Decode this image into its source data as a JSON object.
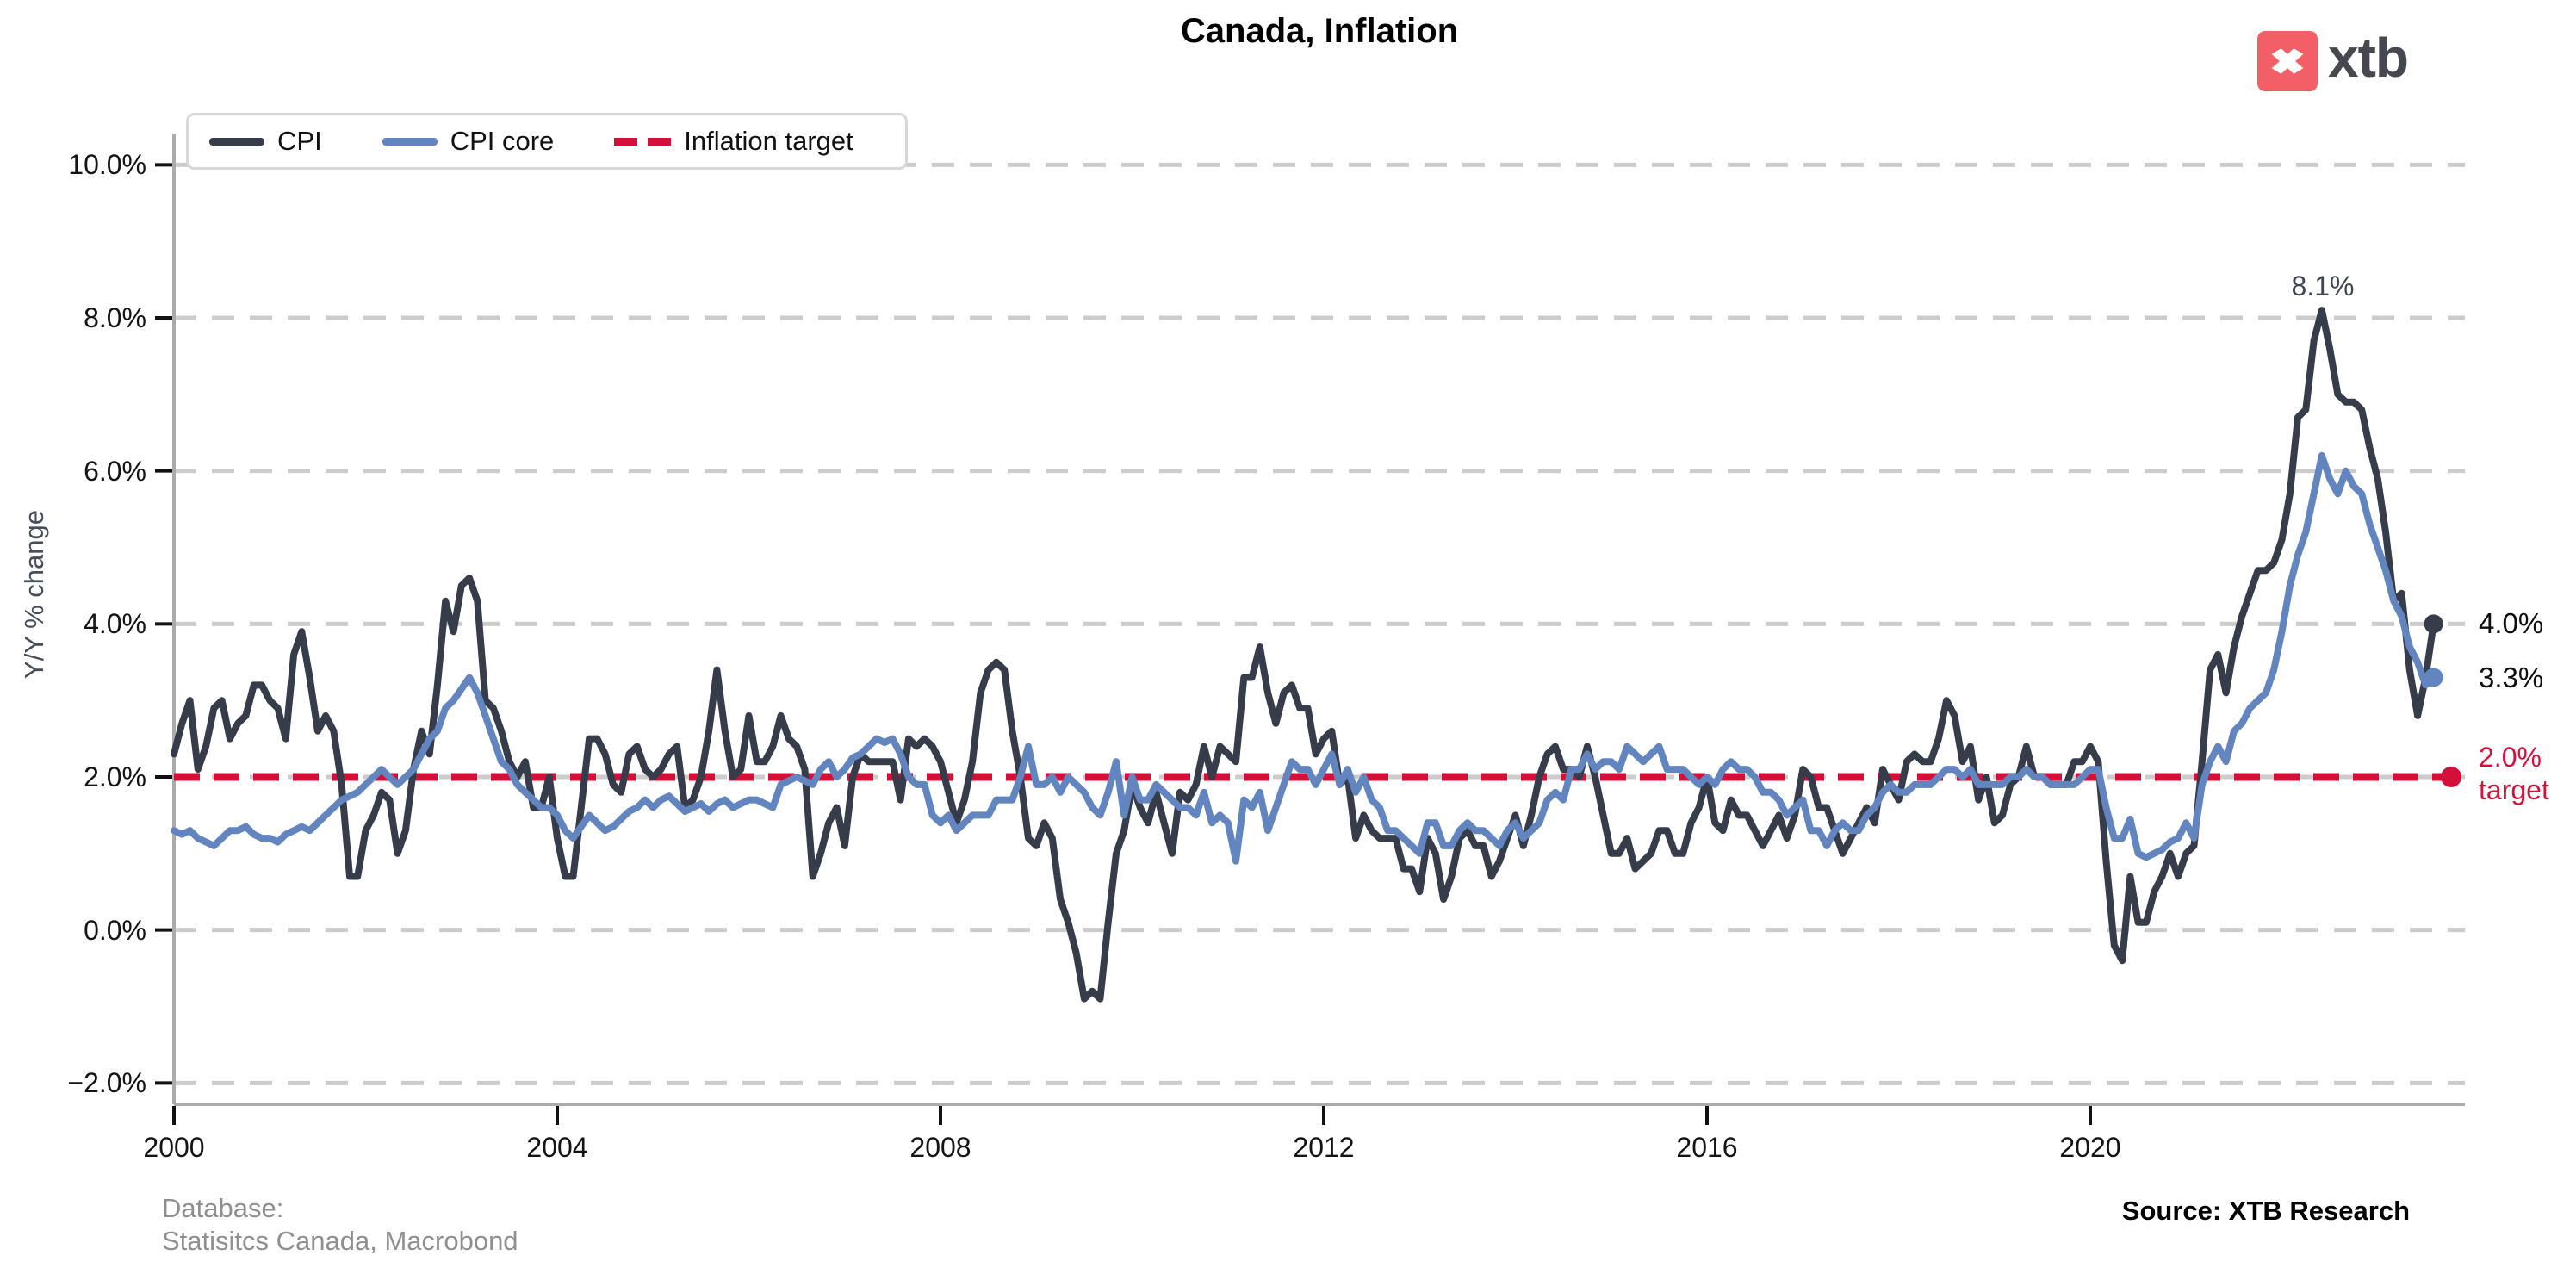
{
  "header": {
    "title": "Canada, Inflation"
  },
  "logo": {
    "text": "xtb",
    "square_color": "#f25f66",
    "text_color": "#45494f"
  },
  "legend": {
    "items": [
      {
        "label": "CPI"
      },
      {
        "label": "CPI core"
      },
      {
        "label": "Inflation target"
      }
    ]
  },
  "chart_data": {
    "type": "line",
    "title": "Canada, Inflation",
    "ylabel": "Y/Y % change",
    "x_start": 2000.0,
    "x_step_months": 1,
    "xlim": [
      2000,
      2023.75
    ],
    "ylim": [
      -2.3,
      10.5
    ],
    "grid": "horizontal-dashed",
    "legend_position": "top-left",
    "xticks": [
      2000,
      2004,
      2008,
      2012,
      2016,
      2020
    ],
    "yticks": [
      {
        "v": 10,
        "label": "10.0%"
      },
      {
        "v": 8,
        "label": "8.0%"
      },
      {
        "v": 6,
        "label": "6.0%"
      },
      {
        "v": 4,
        "label": "4.0%"
      },
      {
        "v": 2,
        "label": "2.0%"
      },
      {
        "v": 0,
        "label": "0.0%"
      },
      {
        "v": -2,
        "label": "−2.0%"
      }
    ],
    "target_line": {
      "label": "Inflation target",
      "value": 2.0,
      "color": "#d40f3a"
    },
    "annotations": {
      "peak": "8.1%",
      "cpi_end": "4.0%",
      "core_end": "3.3%",
      "target_line1": "2.0%",
      "target_line2": "target"
    },
    "series": [
      {
        "name": "CPI",
        "color": "#363c4a",
        "values": [
          2.3,
          2.7,
          3.0,
          2.1,
          2.4,
          2.9,
          3.0,
          2.5,
          2.7,
          2.8,
          3.2,
          3.2,
          3.0,
          2.9,
          2.5,
          3.6,
          3.9,
          3.3,
          2.6,
          2.8,
          2.6,
          1.9,
          0.7,
          0.7,
          1.3,
          1.5,
          1.8,
          1.7,
          1.0,
          1.3,
          2.1,
          2.6,
          2.3,
          3.2,
          4.3,
          3.9,
          4.5,
          4.6,
          4.3,
          3.0,
          2.9,
          2.6,
          2.2,
          2.0,
          2.2,
          1.6,
          1.6,
          2.0,
          1.2,
          0.7,
          0.7,
          1.6,
          2.5,
          2.5,
          2.3,
          1.9,
          1.8,
          2.3,
          2.4,
          2.1,
          2.0,
          2.1,
          2.3,
          2.4,
          1.6,
          1.7,
          2.0,
          2.6,
          3.4,
          2.6,
          2.0,
          2.1,
          2.8,
          2.2,
          2.2,
          2.4,
          2.8,
          2.5,
          2.4,
          2.1,
          0.7,
          1.0,
          1.4,
          1.6,
          1.1,
          2.0,
          2.3,
          2.2,
          2.2,
          2.2,
          2.2,
          1.7,
          2.5,
          2.4,
          2.5,
          2.4,
          2.2,
          1.8,
          1.4,
          1.7,
          2.2,
          3.1,
          3.4,
          3.5,
          3.4,
          2.6,
          2.0,
          1.2,
          1.1,
          1.4,
          1.2,
          0.4,
          0.1,
          -0.3,
          -0.9,
          -0.8,
          -0.9,
          0.1,
          1.0,
          1.3,
          1.9,
          1.6,
          1.4,
          1.8,
          1.4,
          1.0,
          1.8,
          1.7,
          1.9,
          2.4,
          2.0,
          2.4,
          2.3,
          2.2,
          3.3,
          3.3,
          3.7,
          3.1,
          2.7,
          3.1,
          3.2,
          2.9,
          2.9,
          2.3,
          2.5,
          2.6,
          1.9,
          2.0,
          1.2,
          1.5,
          1.3,
          1.2,
          1.2,
          1.2,
          0.8,
          0.8,
          0.5,
          1.2,
          1.0,
          0.4,
          0.7,
          1.2,
          1.3,
          1.1,
          1.1,
          0.7,
          0.9,
          1.2,
          1.5,
          1.1,
          1.5,
          2.0,
          2.3,
          2.4,
          2.1,
          2.1,
          2.0,
          2.4,
          2.0,
          1.5,
          1.0,
          1.0,
          1.2,
          0.8,
          0.9,
          1.0,
          1.3,
          1.3,
          1.0,
          1.0,
          1.4,
          1.6,
          2.0,
          1.4,
          1.3,
          1.7,
          1.5,
          1.5,
          1.3,
          1.1,
          1.3,
          1.5,
          1.2,
          1.5,
          2.1,
          2.0,
          1.6,
          1.6,
          1.3,
          1.0,
          1.2,
          1.4,
          1.6,
          1.4,
          2.1,
          1.9,
          1.7,
          2.2,
          2.3,
          2.2,
          2.2,
          2.5,
          3.0,
          2.8,
          2.2,
          2.4,
          1.7,
          2.0,
          1.4,
          1.5,
          1.9,
          2.0,
          2.4,
          2.0,
          2.0,
          1.9,
          1.9,
          1.9,
          2.2,
          2.2,
          2.4,
          2.2,
          0.9,
          -0.2,
          -0.4,
          0.7,
          0.1,
          0.1,
          0.5,
          0.7,
          1.0,
          0.7,
          1.0,
          1.1,
          2.2,
          3.4,
          3.6,
          3.1,
          3.7,
          4.1,
          4.4,
          4.7,
          4.7,
          4.8,
          5.1,
          5.7,
          6.7,
          6.8,
          7.7,
          8.1,
          7.6,
          7.0,
          6.9,
          6.9,
          6.8,
          6.3,
          5.9,
          5.2,
          4.3,
          4.4,
          3.4,
          2.8,
          3.3,
          4.0
        ]
      },
      {
        "name": "CPI core",
        "color": "#6285c0",
        "values": [
          1.3,
          1.25,
          1.3,
          1.2,
          1.15,
          1.1,
          1.2,
          1.3,
          1.3,
          1.35,
          1.25,
          1.2,
          1.2,
          1.15,
          1.25,
          1.3,
          1.35,
          1.3,
          1.4,
          1.5,
          1.6,
          1.7,
          1.75,
          1.8,
          1.9,
          2.0,
          2.1,
          2.0,
          1.9,
          2.0,
          2.1,
          2.3,
          2.5,
          2.6,
          2.9,
          3.0,
          3.15,
          3.3,
          3.1,
          2.8,
          2.5,
          2.2,
          2.1,
          1.9,
          1.8,
          1.7,
          1.6,
          1.6,
          1.5,
          1.3,
          1.2,
          1.35,
          1.5,
          1.4,
          1.3,
          1.35,
          1.45,
          1.55,
          1.6,
          1.7,
          1.6,
          1.7,
          1.75,
          1.65,
          1.55,
          1.6,
          1.65,
          1.55,
          1.65,
          1.7,
          1.6,
          1.65,
          1.7,
          1.7,
          1.65,
          1.6,
          1.9,
          1.95,
          2.0,
          1.95,
          1.9,
          2.1,
          2.2,
          2.0,
          2.1,
          2.25,
          2.3,
          2.4,
          2.5,
          2.45,
          2.5,
          2.3,
          2.0,
          1.9,
          1.9,
          1.5,
          1.4,
          1.5,
          1.3,
          1.4,
          1.5,
          1.5,
          1.5,
          1.7,
          1.7,
          1.7,
          2.0,
          2.4,
          1.9,
          1.9,
          2.0,
          1.8,
          2.0,
          1.9,
          1.8,
          1.6,
          1.5,
          1.8,
          2.2,
          1.5,
          2.0,
          1.7,
          1.7,
          1.9,
          1.8,
          1.7,
          1.6,
          1.6,
          1.5,
          1.8,
          1.4,
          1.5,
          1.4,
          0.9,
          1.7,
          1.6,
          1.8,
          1.3,
          1.6,
          1.9,
          2.2,
          2.1,
          2.1,
          1.9,
          2.1,
          2.3,
          1.9,
          2.1,
          1.8,
          2.0,
          1.7,
          1.6,
          1.3,
          1.3,
          1.2,
          1.1,
          1.0,
          1.4,
          1.4,
          1.1,
          1.1,
          1.3,
          1.4,
          1.3,
          1.3,
          1.2,
          1.1,
          1.3,
          1.4,
          1.2,
          1.3,
          1.4,
          1.7,
          1.8,
          1.7,
          2.1,
          2.1,
          2.3,
          2.1,
          2.2,
          2.2,
          2.1,
          2.4,
          2.3,
          2.2,
          2.3,
          2.4,
          2.1,
          2.1,
          2.1,
          2.0,
          1.9,
          2.0,
          1.9,
          2.1,
          2.2,
          2.1,
          2.1,
          2.0,
          1.8,
          1.8,
          1.7,
          1.5,
          1.6,
          1.7,
          1.3,
          1.3,
          1.1,
          1.3,
          1.4,
          1.3,
          1.3,
          1.5,
          1.6,
          1.8,
          1.9,
          1.8,
          1.8,
          1.9,
          1.9,
          1.9,
          2.0,
          2.1,
          2.1,
          2.0,
          2.1,
          1.9,
          1.9,
          1.9,
          1.9,
          2.0,
          2.0,
          2.1,
          2.0,
          2.0,
          1.9,
          1.9,
          1.9,
          1.9,
          2.0,
          2.1,
          2.1,
          1.6,
          1.2,
          1.2,
          1.45,
          1.0,
          0.95,
          1.0,
          1.05,
          1.15,
          1.2,
          1.4,
          1.2,
          1.9,
          2.2,
          2.4,
          2.2,
          2.6,
          2.7,
          2.9,
          3.0,
          3.1,
          3.4,
          3.9,
          4.5,
          4.9,
          5.2,
          5.7,
          6.2,
          5.9,
          5.7,
          6.0,
          5.8,
          5.7,
          5.3,
          5.0,
          4.7,
          4.3,
          4.1,
          3.7,
          3.5,
          3.2,
          3.3
        ]
      }
    ]
  },
  "footer": {
    "database_line1": "Database:",
    "database_line2": "Statisitcs Canada, Macrobond",
    "source": "Source: XTB Research"
  }
}
